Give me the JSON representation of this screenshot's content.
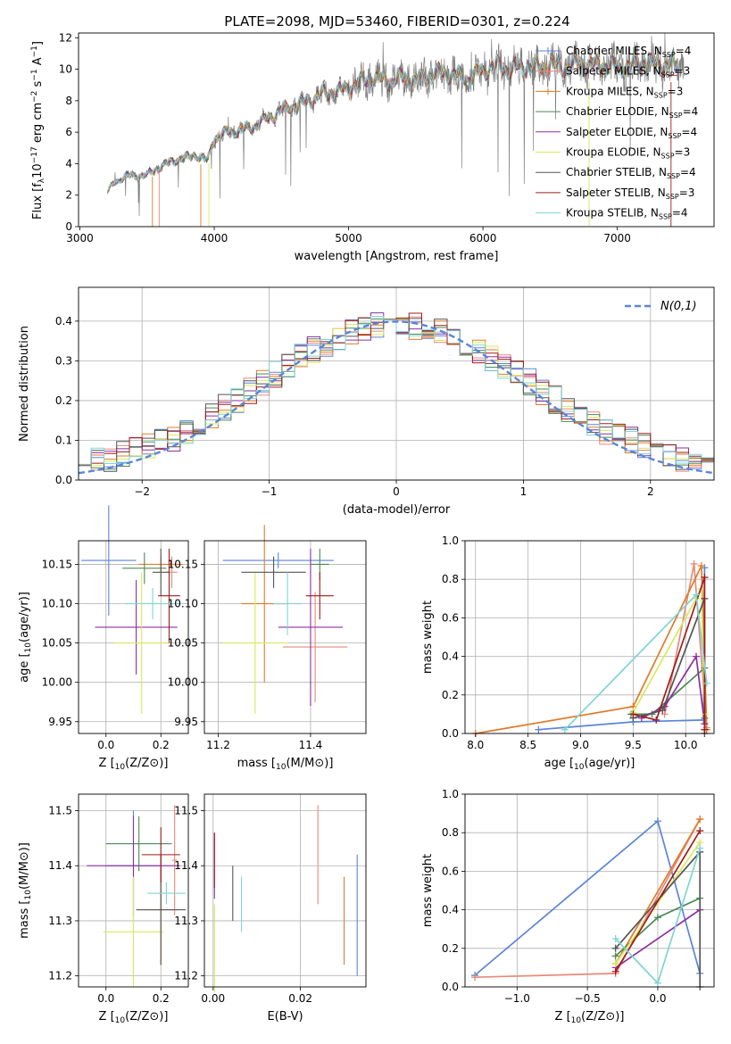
{
  "figure_title": "PLATE=2098, MJD=53460, FIBERID=0301, z=0.224",
  "colors": {
    "chabrier_miles": "#5b84d9",
    "salpeter_miles": "#e8897a",
    "kroupa_miles": "#e07b2a",
    "chabrier_elodie": "#4d8a55",
    "salpeter_elodie": "#8b2ea0",
    "kroupa_elodie": "#d9e85c",
    "chabrier_stelib": "#555555",
    "salpeter_stelib": "#a11b1b",
    "kroupa_stelib": "#7fd4d4",
    "spectrum": "#808080",
    "gaussian": "#5b84d9",
    "grid": "#b0b0b0"
  },
  "chart_data": [
    {
      "id": "spectrum",
      "type": "line",
      "title": "",
      "xlabel": "wavelength [Angstrom, rest frame]",
      "ylabel_parts": [
        "Flux [f",
        "λ",
        "10",
        "−17",
        " erg cm",
        "−2",
        " s",
        "−1",
        " A",
        "−1",
        "]"
      ],
      "xlim": [
        2990,
        7720
      ],
      "ylim": [
        0,
        12.3
      ],
      "xticks": [
        3000,
        4000,
        5000,
        6000,
        7000
      ],
      "yticks": [
        0,
        2,
        4,
        6,
        8,
        10,
        12
      ],
      "grid": false,
      "legend_position": "upper-right",
      "legend": [
        {
          "name": "Chabrier MILES, N",
          "sub": "SSP",
          "suffix": "=4",
          "color_key": "chabrier_miles",
          "marker": "plus"
        },
        {
          "name": "Salpeter MILES, N",
          "sub": "SSP",
          "suffix": "=3",
          "color_key": "salpeter_miles",
          "marker": "plus"
        },
        {
          "name": "Kroupa MILES, N",
          "sub": "SSP",
          "suffix": "=3",
          "color_key": "kroupa_miles",
          "marker": "plus"
        },
        {
          "name": "Chabrier ELODIE, N",
          "sub": "SSP",
          "suffix": "=4",
          "color_key": "chabrier_elodie",
          "marker": "none"
        },
        {
          "name": "Salpeter ELODIE, N",
          "sub": "SSP",
          "suffix": "=4",
          "color_key": "salpeter_elodie",
          "marker": "none"
        },
        {
          "name": "Kroupa ELODIE, N",
          "sub": "SSP",
          "suffix": "=3",
          "color_key": "kroupa_elodie",
          "marker": "none"
        },
        {
          "name": "Chabrier STELIB, N",
          "sub": "SSP",
          "suffix": "=4",
          "color_key": "chabrier_stelib",
          "marker": "none"
        },
        {
          "name": "Salpeter STELIB, N",
          "sub": "SSP",
          "suffix": "=3",
          "color_key": "salpeter_stelib",
          "marker": "none"
        },
        {
          "name": "Kroupa STELIB, N",
          "sub": "SSP",
          "suffix": "=4",
          "color_key": "kroupa_stelib",
          "marker": "none"
        }
      ],
      "spectrum_envelope": {
        "x": [
          3200,
          3250,
          3300,
          3350,
          3400,
          3450,
          3500,
          3550,
          3600,
          3650,
          3700,
          3750,
          3800,
          3850,
          3900,
          3950,
          4000,
          4100,
          4200,
          4300,
          4400,
          4500,
          4600,
          4700,
          4800,
          4900,
          5000,
          5100,
          5200,
          5300,
          5400,
          5500,
          5600,
          5700,
          5800,
          5900,
          6000,
          6100,
          6200,
          6300,
          6400,
          6500,
          6600,
          6700,
          6800,
          6900,
          7000,
          7100,
          7200,
          7300,
          7400,
          7500
        ],
        "y": [
          2.1,
          2.8,
          3.0,
          3.2,
          3.3,
          3.2,
          3.3,
          3.6,
          3.8,
          4.0,
          4.2,
          4.3,
          4.4,
          4.6,
          4.4,
          4.2,
          5.6,
          6.0,
          6.1,
          6.4,
          6.9,
          7.4,
          7.7,
          8.0,
          8.4,
          8.6,
          8.8,
          9.2,
          9.4,
          9.2,
          9.5,
          9.3,
          9.6,
          9.8,
          9.6,
          9.4,
          9.9,
          10.2,
          10.0,
          10.2,
          10.1,
          10.3,
          10.1,
          10.4,
          10.2,
          10.3,
          10.1,
          10.2,
          10.4,
          10.3,
          10.2,
          10.2
        ]
      }
    },
    {
      "id": "residuals",
      "type": "histogram",
      "title": "",
      "xlabel": "(data-model)/error",
      "ylabel": "Normed distribution",
      "xlim": [
        -2.5,
        2.5
      ],
      "ylim": [
        0,
        0.485
      ],
      "xticks": [
        -2,
        -1,
        0,
        1,
        2
      ],
      "yticks": [
        0.0,
        0.1,
        0.2,
        0.3,
        0.4
      ],
      "grid": true,
      "legend_position": "upper-right",
      "legend": [
        {
          "name": "N(0,1)",
          "color_key": "gaussian",
          "style": "dashed"
        }
      ]
    },
    {
      "id": "age_vs_z",
      "type": "scatter-errorbar",
      "title": "",
      "xlabel": "Z [log10(Z/Z⊙)]",
      "ylabel": "age  [log10(age/yr)]",
      "xlim": [
        -0.1,
        0.3
      ],
      "ylim": [
        9.935,
        10.18
      ],
      "xticks": [
        0.0,
        0.2
      ],
      "yticks": [
        9.95,
        10.0,
        10.05,
        10.1,
        10.15
      ],
      "grid": true,
      "points": [
        {
          "color_key": "chabrier_miles",
          "x": 0.01,
          "xerr": 0.1,
          "y": 10.155,
          "yerr": 0.07
        },
        {
          "color_key": "salpeter_miles",
          "x": 0.24,
          "xerr": 0.02,
          "y": 10.14,
          "yerr": 0.02
        },
        {
          "color_key": "kroupa_miles",
          "x": 0.2,
          "xerr": 0.08,
          "y": 10.15,
          "yerr": 0.01
        },
        {
          "color_key": "chabrier_elodie",
          "x": 0.14,
          "xerr": 0.08,
          "y": 10.145,
          "yerr": 0.02
        },
        {
          "color_key": "salpeter_elodie",
          "x": 0.11,
          "xerr": 0.15,
          "y": 10.07,
          "yerr": 0.06
        },
        {
          "color_key": "kroupa_elodie",
          "x": 0.13,
          "xerr": 0.1,
          "y": 10.05,
          "yerr": 0.09
        },
        {
          "color_key": "chabrier_stelib",
          "x": 0.2,
          "xerr": 0.03,
          "y": 10.14,
          "yerr": 0.03
        },
        {
          "color_key": "salpeter_stelib",
          "x": 0.23,
          "xerr": 0.04,
          "y": 10.11,
          "yerr": 0.06
        },
        {
          "color_key": "kroupa_stelib",
          "x": 0.17,
          "xerr": 0.1,
          "y": 10.1,
          "yerr": 0.02
        }
      ]
    },
    {
      "id": "age_vs_mass",
      "type": "scatter-errorbar",
      "title": "",
      "xlabel": "mass [log10(M/M⊙)]",
      "ylabel": "",
      "xlim": [
        11.17,
        11.52
      ],
      "ylim": [
        9.935,
        10.18
      ],
      "xticks": [
        11.2,
        11.4
      ],
      "yticks": [
        9.95,
        10.0,
        10.05,
        10.1,
        10.15
      ],
      "grid": true,
      "points": [
        {
          "color_key": "chabrier_miles",
          "x": 11.33,
          "xerr": 0.12,
          "y": 10.155,
          "yerr": 0.01
        },
        {
          "color_key": "salpeter_miles",
          "x": 11.41,
          "xerr": 0.07,
          "y": 10.045,
          "yerr": 0.07
        },
        {
          "color_key": "kroupa_miles",
          "x": 11.3,
          "xerr": 0.05,
          "y": 10.1,
          "yerr": 0.1
        },
        {
          "color_key": "chabrier_elodie",
          "x": 11.42,
          "xerr": 0.02,
          "y": 10.15,
          "yerr": 0.02
        },
        {
          "color_key": "salpeter_elodie",
          "x": 11.4,
          "xerr": 0.07,
          "y": 10.07,
          "yerr": 0.1
        },
        {
          "color_key": "kroupa_elodie",
          "x": 11.28,
          "xerr": 0.07,
          "y": 10.05,
          "yerr": 0.09
        },
        {
          "color_key": "chabrier_stelib",
          "x": 11.32,
          "xerr": 0.07,
          "y": 10.14,
          "yerr": 0.02
        },
        {
          "color_key": "salpeter_stelib",
          "x": 11.42,
          "xerr": 0.03,
          "y": 10.11,
          "yerr": 0.03
        },
        {
          "color_key": "kroupa_stelib",
          "x": 11.35,
          "xerr": 0.03,
          "y": 10.1,
          "yerr": 0.04
        }
      ]
    },
    {
      "id": "massweight_vs_age",
      "type": "line",
      "title": "",
      "xlabel": "age  [log10(age/yr)]",
      "ylabel": "mass weight",
      "xlim": [
        7.9,
        10.27
      ],
      "ylim": [
        0,
        1.0
      ],
      "xticks": [
        8.0,
        8.5,
        9.0,
        9.5,
        10.0
      ],
      "yticks": [
        0.0,
        0.2,
        0.4,
        0.6,
        0.8,
        1.0
      ],
      "grid": true,
      "series": [
        {
          "color_key": "chabrier_miles",
          "x": [
            8.6,
            9.5,
            10.17,
            10.18
          ],
          "y": [
            0.02,
            0.06,
            0.07,
            0.86
          ]
        },
        {
          "color_key": "salpeter_miles",
          "x": [
            9.8,
            10.08,
            10.2
          ],
          "y": [
            0.1,
            0.88,
            0.03
          ]
        },
        {
          "color_key": "kroupa_miles",
          "x": [
            8.0,
            9.5,
            10.15,
            10.2
          ],
          "y": [
            0.0,
            0.14,
            0.87,
            0.02
          ]
        },
        {
          "color_key": "chabrier_elodie",
          "x": [
            9.48,
            9.68,
            10.18,
            10.18
          ],
          "y": [
            0.1,
            0.1,
            0.34,
            0.08
          ]
        },
        {
          "color_key": "salpeter_elodie",
          "x": [
            9.58,
            9.8,
            10.1,
            10.18
          ],
          "y": [
            0.08,
            0.14,
            0.4,
            0.05
          ]
        },
        {
          "color_key": "kroupa_elodie",
          "x": [
            9.5,
            10.1,
            10.15,
            10.18
          ],
          "y": [
            0.11,
            0.7,
            0.75,
            0.1
          ]
        },
        {
          "color_key": "chabrier_stelib",
          "x": [
            9.5,
            9.78,
            10.18,
            10.18
          ],
          "y": [
            0.08,
            0.12,
            0.7,
            0.0
          ]
        },
        {
          "color_key": "salpeter_stelib",
          "x": [
            9.5,
            9.72,
            10.18,
            10.18
          ],
          "y": [
            0.1,
            0.07,
            0.81,
            0.02
          ]
        },
        {
          "color_key": "kroupa_stelib",
          "x": [
            8.85,
            10.1,
            10.2
          ],
          "y": [
            0.02,
            0.72,
            0.26
          ]
        }
      ]
    },
    {
      "id": "mass_vs_z",
      "type": "scatter-errorbar",
      "title": "",
      "xlabel": "Z [log10(Z/Z⊙)]",
      "ylabel": "mass [log10(M/M⊙)]",
      "xlim": [
        -0.1,
        0.3
      ],
      "ylim": [
        11.18,
        11.53
      ],
      "xticks": [
        0.0,
        0.2
      ],
      "yticks": [
        11.2,
        11.3,
        11.4,
        11.5
      ],
      "grid": true,
      "points": [
        {
          "color_key": "chabrier_miles",
          "x": 0.1,
          "xerr": 0.1,
          "y": 11.4,
          "yerr": 0.1
        },
        {
          "color_key": "salpeter_miles",
          "x": 0.25,
          "xerr": 0.01,
          "y": 11.41,
          "yerr": 0.1
        },
        {
          "color_key": "kroupa_miles",
          "x": 0.2,
          "xerr": 0.06,
          "y": 11.32,
          "yerr": 0.1
        },
        {
          "color_key": "chabrier_elodie",
          "x": 0.12,
          "xerr": 0.12,
          "y": 11.44,
          "yerr": 0.05
        },
        {
          "color_key": "salpeter_elodie",
          "x": 0.1,
          "xerr": 0.17,
          "y": 11.4,
          "yerr": 0.09
        },
        {
          "color_key": "kroupa_elodie",
          "x": 0.1,
          "xerr": 0.11,
          "y": 11.28,
          "yerr": 0.1
        },
        {
          "color_key": "chabrier_stelib",
          "x": 0.2,
          "xerr": 0.09,
          "y": 11.32,
          "yerr": 0.1
        },
        {
          "color_key": "salpeter_stelib",
          "x": 0.2,
          "xerr": 0.07,
          "y": 11.42,
          "yerr": 0.05
        },
        {
          "color_key": "kroupa_stelib",
          "x": 0.22,
          "xerr": 0.07,
          "y": 11.35,
          "yerr": 0.02
        }
      ]
    },
    {
      "id": "mass_vs_ebv",
      "type": "scatter-errorbar",
      "title": "",
      "xlabel": "E(B-V)",
      "ylabel": "",
      "xlim": [
        -0.002,
        0.035
      ],
      "ylim": [
        11.18,
        11.53
      ],
      "xticks": [
        0.0,
        0.02
      ],
      "yticks": [
        11.2,
        11.3,
        11.4,
        11.5
      ],
      "grid": true,
      "points": [
        {
          "color_key": "chabrier_miles",
          "x": 0.033,
          "xerr": 0,
          "y": 11.31,
          "yerr": 0.11
        },
        {
          "color_key": "salpeter_miles",
          "x": 0.024,
          "xerr": 0,
          "y": 11.42,
          "yerr": 0.09
        },
        {
          "color_key": "kroupa_miles",
          "x": 0.03,
          "xerr": 0,
          "y": 11.3,
          "yerr": 0.08
        },
        {
          "color_key": "kroupa_elodie",
          "x": 0.0003,
          "xerr": 0,
          "y": 11.25,
          "yerr": 0.08
        },
        {
          "color_key": "salpeter_elodie",
          "x": 0.0003,
          "xerr": 0,
          "y": 11.4,
          "yerr": 0.06
        },
        {
          "color_key": "salpeter_stelib",
          "x": 0.0003,
          "xerr": 0,
          "y": 11.41,
          "yerr": 0.05
        },
        {
          "color_key": "chabrier_stelib",
          "x": 0.0045,
          "xerr": 0,
          "y": 11.35,
          "yerr": 0.05
        },
        {
          "color_key": "kroupa_stelib",
          "x": 0.0065,
          "xerr": 0,
          "y": 11.33,
          "yerr": 0.05
        }
      ]
    },
    {
      "id": "massweight_vs_z",
      "type": "line",
      "title": "",
      "xlabel": "Z [log10(Z/Z⊙)]",
      "ylabel": "mass weight",
      "xlim": [
        -1.37,
        0.4
      ],
      "ylim": [
        0,
        1.0
      ],
      "xticks": [
        -1.0,
        -0.5,
        0.0
      ],
      "yticks": [
        0.0,
        0.2,
        0.4,
        0.6,
        0.8,
        1.0
      ],
      "grid": true,
      "series": [
        {
          "color_key": "chabrier_miles",
          "x": [
            -1.3,
            0.0,
            0.3
          ],
          "y": [
            0.06,
            0.86,
            0.07
          ]
        },
        {
          "color_key": "salpeter_miles",
          "x": [
            -1.3,
            -0.3,
            0.3
          ],
          "y": [
            0.05,
            0.07,
            0.87
          ]
        },
        {
          "color_key": "kroupa_miles",
          "x": [
            -0.3,
            0.3
          ],
          "y": [
            0.12,
            0.87
          ]
        },
        {
          "color_key": "chabrier_elodie",
          "x": [
            -0.3,
            0.0,
            0.3
          ],
          "y": [
            0.16,
            0.36,
            0.46
          ]
        },
        {
          "color_key": "salpeter_elodie",
          "x": [
            -0.3,
            0.3
          ],
          "y": [
            0.1,
            0.4
          ]
        },
        {
          "color_key": "kroupa_elodie",
          "x": [
            -0.3,
            0.3
          ],
          "y": [
            0.12,
            0.75
          ]
        },
        {
          "color_key": "chabrier_stelib",
          "x": [
            -0.3,
            0.3,
            0.3
          ],
          "y": [
            0.2,
            0.7,
            0.0
          ]
        },
        {
          "color_key": "salpeter_stelib",
          "x": [
            -0.3,
            0.3
          ],
          "y": [
            0.08,
            0.81
          ]
        },
        {
          "color_key": "kroupa_stelib",
          "x": [
            -0.3,
            0.0,
            0.3
          ],
          "y": [
            0.25,
            0.02,
            0.72
          ]
        }
      ]
    }
  ]
}
